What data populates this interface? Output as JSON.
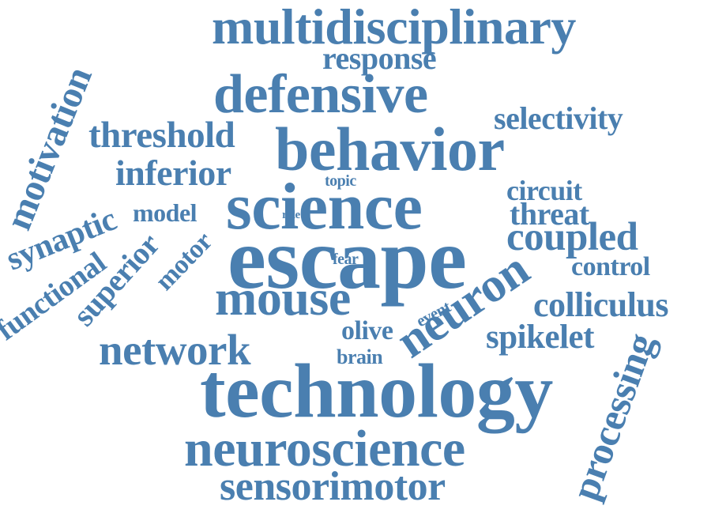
{
  "colors": {
    "background": "#ffffff",
    "word": "#4a7fb0"
  },
  "words": {
    "multidisciplinary": "multidisciplinary",
    "response": "response",
    "defensive": "defensive",
    "selectivity": "selectivity",
    "threshold": "threshold",
    "behavior": "behavior",
    "inferior": "inferior",
    "motivation": "motivation",
    "topic": "topic",
    "circuit": "circuit",
    "science": "science",
    "model": "model",
    "threat": "threat",
    "role": "role",
    "synaptic": "synaptic",
    "coupled": "coupled",
    "superior": "superior",
    "motor": "motor",
    "escape": "escape",
    "fear": "fear",
    "control": "control",
    "functional": "functional",
    "neuron": "neuron",
    "mouse": "mouse",
    "colliculus": "colliculus",
    "event": "event",
    "olive": "olive",
    "spikelet": "spikelet",
    "network": "network",
    "brain": "brain",
    "processing": "processing",
    "technology": "technology",
    "neuroscience": "neuroscience",
    "sensorimotor": "sensorimotor"
  }
}
